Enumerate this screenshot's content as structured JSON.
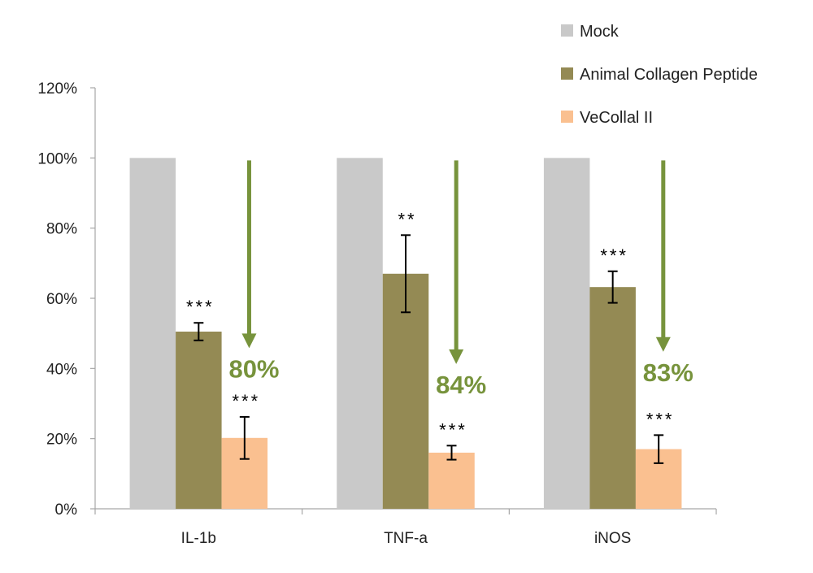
{
  "chart_data": {
    "type": "bar",
    "title": "",
    "xlabel": "",
    "ylabel": "",
    "ylim": [
      0,
      120
    ],
    "yticks": [
      0,
      20,
      40,
      60,
      80,
      100,
      120
    ],
    "ytick_labels": [
      "0%",
      "20%",
      "40%",
      "60%",
      "80%",
      "100%",
      "120%"
    ],
    "grid": false,
    "legend_position": "top-right",
    "categories": [
      "IL-1b",
      "TNF-a",
      "iNOS"
    ],
    "series": [
      {
        "name": "Mock",
        "color": "#c9c9c9",
        "values": [
          100,
          100,
          100
        ],
        "errors": [
          0,
          0,
          0
        ],
        "significance": [
          "",
          "",
          ""
        ]
      },
      {
        "name": "Animal Collagen Peptide",
        "color": "#948a54",
        "values": [
          50.5,
          67,
          63.2
        ],
        "errors": [
          2.5,
          11,
          4.5
        ],
        "significance": [
          "***",
          "**",
          "***"
        ]
      },
      {
        "name": "VeCollal II",
        "color": "#fac090",
        "values": [
          20.2,
          16,
          17
        ],
        "errors": [
          6,
          2,
          4
        ],
        "significance": [
          "***",
          "***",
          "***"
        ]
      }
    ],
    "annotations": [
      {
        "category": "IL-1b",
        "label": "80%",
        "arrow_from": 100,
        "arrow_to": 46
      },
      {
        "category": "TNF-a",
        "label": "84%",
        "arrow_from": 100,
        "arrow_to": 41.5
      },
      {
        "category": "iNOS",
        "label": "83%",
        "arrow_from": 100,
        "arrow_to": 45
      }
    ],
    "annotation_color": "#77933c"
  }
}
